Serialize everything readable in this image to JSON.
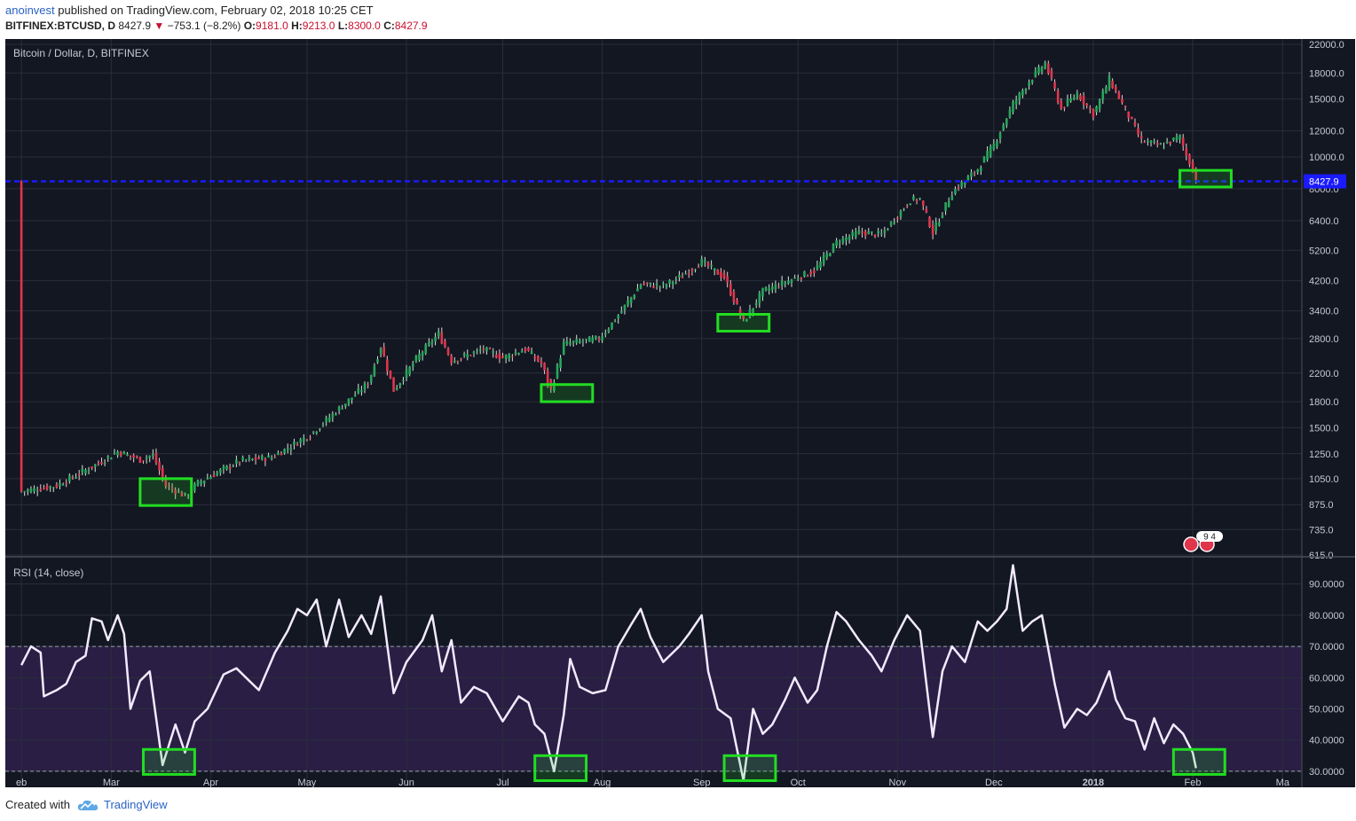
{
  "header": {
    "author": "anoinvest",
    "published_text": "published on TradingView.com, February 02, 2018 10:25 CET",
    "symbol": "BITFINEX:BTCUSD, D",
    "last": "8427.9",
    "change": "−753.1 (−8.2%)",
    "o_label": "O:",
    "o_value": "9181.0",
    "h_label": "H:",
    "h_value": "9213.0",
    "l_label": "L:",
    "l_value": "8300.0",
    "c_label": "C:",
    "c_value": "8427.9"
  },
  "footer": {
    "created_with": "Created with",
    "brand": "TradingView"
  },
  "colors": {
    "background": "#131722",
    "grid": "#2a2e39",
    "up": "#26a65b",
    "down": "#e0364c",
    "highlight": "#22dd22",
    "price_line": "#1a1aff",
    "rsi_line": "#f2eaff",
    "rsi_band": "#2a1e45",
    "text": "#c5c9d3"
  },
  "chart_data": [
    {
      "type": "candlestick",
      "title": "Bitcoin / Dollar, D, BITFINEX",
      "y_scale": "log",
      "ylim": [
        615,
        22000
      ],
      "y_ticks": [
        "615.0",
        "735.0",
        "875.0",
        "1050.0",
        "1250.0",
        "1500.0",
        "1800.0",
        "2200.0",
        "2800.0",
        "3400.0",
        "4200.0",
        "5200.0",
        "6400.0",
        "8000.0",
        "10000.0",
        "12000.0",
        "15000.0",
        "18000.0",
        "22000.0"
      ],
      "x_ticks": [
        "eb",
        "Mar",
        "Apr",
        "May",
        "Jun",
        "Jul",
        "Aug",
        "Sep",
        "Oct",
        "Nov",
        "Dec",
        "2018",
        "Feb",
        "Ma"
      ],
      "last_price_label": "8427.9",
      "last_price": 8427.9,
      "event_badge": "9 4",
      "price_path": [
        [
          "2017-02-01",
          960
        ],
        [
          "2017-02-12",
          1000
        ],
        [
          "2017-02-25",
          1170
        ],
        [
          "2017-03-03",
          1270
        ],
        [
          "2017-03-10",
          1200
        ],
        [
          "2017-03-14",
          1240
        ],
        [
          "2017-03-18",
          1000
        ],
        [
          "2017-03-24",
          930
        ],
        [
          "2017-03-28",
          1020
        ],
        [
          "2017-04-10",
          1190
        ],
        [
          "2017-04-20",
          1220
        ],
        [
          "2017-05-02",
          1430
        ],
        [
          "2017-05-12",
          1750
        ],
        [
          "2017-05-20",
          2050
        ],
        [
          "2017-05-24",
          2650
        ],
        [
          "2017-05-28",
          1950
        ],
        [
          "2017-06-05",
          2500
        ],
        [
          "2017-06-11",
          2900
        ],
        [
          "2017-06-15",
          2400
        ],
        [
          "2017-06-25",
          2600
        ],
        [
          "2017-07-01",
          2450
        ],
        [
          "2017-07-08",
          2600
        ],
        [
          "2017-07-13",
          2350
        ],
        [
          "2017-07-16",
          1950
        ],
        [
          "2017-07-20",
          2700
        ],
        [
          "2017-07-31",
          2800
        ],
        [
          "2017-08-05",
          3200
        ],
        [
          "2017-08-13",
          4100
        ],
        [
          "2017-08-20",
          4050
        ],
        [
          "2017-08-26",
          4350
        ],
        [
          "2017-09-01",
          4800
        ],
        [
          "2017-09-08",
          4300
        ],
        [
          "2017-09-14",
          3150
        ],
        [
          "2017-09-20",
          3900
        ],
        [
          "2017-09-28",
          4200
        ],
        [
          "2017-10-06",
          4500
        ],
        [
          "2017-10-13",
          5500
        ],
        [
          "2017-10-20",
          5900
        ],
        [
          "2017-10-27",
          5800
        ],
        [
          "2017-11-05",
          7400
        ],
        [
          "2017-11-08",
          7450
        ],
        [
          "2017-11-12",
          5900
        ],
        [
          "2017-11-18",
          7800
        ],
        [
          "2017-11-26",
          9200
        ],
        [
          "2017-12-01",
          10900
        ],
        [
          "2017-12-07",
          14500
        ],
        [
          "2017-12-12",
          17000
        ],
        [
          "2017-12-17",
          19300
        ],
        [
          "2017-12-22",
          14000
        ],
        [
          "2017-12-27",
          15600
        ],
        [
          "2018-01-01",
          13500
        ],
        [
          "2018-01-06",
          17200
        ],
        [
          "2018-01-10",
          14500
        ],
        [
          "2018-01-16",
          11200
        ],
        [
          "2018-01-22",
          10800
        ],
        [
          "2018-01-28",
          11500
        ],
        [
          "2018-01-30",
          10100
        ],
        [
          "2018-02-01",
          9180
        ],
        [
          "2018-02-02",
          8428
        ]
      ],
      "highlight_boxes": [
        {
          "start": "2017-03-10",
          "end": "2017-03-26",
          "low": 870,
          "high": 1050
        },
        {
          "start": "2017-07-13",
          "end": "2017-07-29",
          "low": 1800,
          "high": 2030
        },
        {
          "start": "2017-09-06",
          "end": "2017-09-22",
          "low": 2950,
          "high": 3320
        },
        {
          "start": "2018-01-28",
          "end": "2018-02-13",
          "low": 8100,
          "high": 9100
        }
      ]
    },
    {
      "type": "line",
      "title": "RSI (14, close)",
      "ylim": [
        26,
        97
      ],
      "y_ticks": [
        "30.0000",
        "40.0000",
        "50.0000",
        "60.0000",
        "70.0000",
        "80.0000",
        "90.0000"
      ],
      "band": [
        30,
        70
      ],
      "x_ticks": [
        "eb",
        "Mar",
        "Apr",
        "May",
        "Jun",
        "Jul",
        "Aug",
        "Sep",
        "Oct",
        "Nov",
        "Dec",
        "2018",
        "Feb",
        "Ma"
      ],
      "series": [
        {
          "values": [
            [
              "2017-02-01",
              64
            ],
            [
              "2017-02-04",
              70
            ],
            [
              "2017-02-07",
              68
            ],
            [
              "2017-02-08",
              54
            ],
            [
              "2017-02-12",
              56
            ],
            [
              "2017-02-15",
              58
            ],
            [
              "2017-02-18",
              65
            ],
            [
              "2017-02-21",
              67
            ],
            [
              "2017-02-23",
              79
            ],
            [
              "2017-02-26",
              78
            ],
            [
              "2017-02-28",
              72
            ],
            [
              "2017-03-03",
              80
            ],
            [
              "2017-03-05",
              74
            ],
            [
              "2017-03-07",
              50
            ],
            [
              "2017-03-10",
              59
            ],
            [
              "2017-03-13",
              62
            ],
            [
              "2017-03-17",
              32
            ],
            [
              "2017-03-21",
              45
            ],
            [
              "2017-03-24",
              36
            ],
            [
              "2017-03-27",
              46
            ],
            [
              "2017-03-31",
              50
            ],
            [
              "2017-04-05",
              61
            ],
            [
              "2017-04-09",
              63
            ],
            [
              "2017-04-12",
              60
            ],
            [
              "2017-04-16",
              56
            ],
            [
              "2017-04-21",
              68
            ],
            [
              "2017-04-25",
              75
            ],
            [
              "2017-04-28",
              82
            ],
            [
              "2017-05-01",
              80
            ],
            [
              "2017-05-04",
              85
            ],
            [
              "2017-05-07",
              70
            ],
            [
              "2017-05-11",
              85
            ],
            [
              "2017-05-14",
              73
            ],
            [
              "2017-05-18",
              80
            ],
            [
              "2017-05-21",
              74
            ],
            [
              "2017-05-24",
              86
            ],
            [
              "2017-05-28",
              55
            ],
            [
              "2017-06-01",
              65
            ],
            [
              "2017-06-06",
              72
            ],
            [
              "2017-06-09",
              80
            ],
            [
              "2017-06-12",
              62
            ],
            [
              "2017-06-15",
              72
            ],
            [
              "2017-06-18",
              52
            ],
            [
              "2017-06-22",
              57
            ],
            [
              "2017-06-26",
              55
            ],
            [
              "2017-07-01",
              46
            ],
            [
              "2017-07-06",
              54
            ],
            [
              "2017-07-09",
              52
            ],
            [
              "2017-07-11",
              45
            ],
            [
              "2017-07-14",
              42
            ],
            [
              "2017-07-17",
              30
            ],
            [
              "2017-07-20",
              48
            ],
            [
              "2017-07-22",
              66
            ],
            [
              "2017-07-25",
              57
            ],
            [
              "2017-07-29",
              55
            ],
            [
              "2017-08-02",
              56
            ],
            [
              "2017-08-06",
              70
            ],
            [
              "2017-08-10",
              77
            ],
            [
              "2017-08-13",
              82
            ],
            [
              "2017-08-16",
              73
            ],
            [
              "2017-08-20",
              65
            ],
            [
              "2017-08-25",
              70
            ],
            [
              "2017-08-28",
              74
            ],
            [
              "2017-09-01",
              80
            ],
            [
              "2017-09-03",
              62
            ],
            [
              "2017-09-06",
              50
            ],
            [
              "2017-09-10",
              47
            ],
            [
              "2017-09-14",
              27
            ],
            [
              "2017-09-17",
              50
            ],
            [
              "2017-09-20",
              42
            ],
            [
              "2017-09-23",
              45
            ],
            [
              "2017-09-27",
              53
            ],
            [
              "2017-09-30",
              60
            ],
            [
              "2017-10-04",
              52
            ],
            [
              "2017-10-07",
              56
            ],
            [
              "2017-10-10",
              70
            ],
            [
              "2017-10-13",
              81
            ],
            [
              "2017-10-16",
              78
            ],
            [
              "2017-10-20",
              72
            ],
            [
              "2017-10-24",
              67
            ],
            [
              "2017-10-27",
              62
            ],
            [
              "2017-10-31",
              72
            ],
            [
              "2017-11-04",
              80
            ],
            [
              "2017-11-08",
              75
            ],
            [
              "2017-11-12",
              41
            ],
            [
              "2017-11-15",
              62
            ],
            [
              "2017-11-18",
              70
            ],
            [
              "2017-11-22",
              65
            ],
            [
              "2017-11-26",
              78
            ],
            [
              "2017-11-29",
              75
            ],
            [
              "2017-12-02",
              78
            ],
            [
              "2017-12-05",
              82
            ],
            [
              "2017-12-07",
              96
            ],
            [
              "2017-12-10",
              75
            ],
            [
              "2017-12-13",
              78
            ],
            [
              "2017-12-16",
              80
            ],
            [
              "2017-12-20",
              58
            ],
            [
              "2017-12-23",
              44
            ],
            [
              "2017-12-27",
              50
            ],
            [
              "2017-12-30",
              48
            ],
            [
              "2018-01-02",
              52
            ],
            [
              "2018-01-06",
              62
            ],
            [
              "2018-01-08",
              53
            ],
            [
              "2018-01-11",
              47
            ],
            [
              "2018-01-14",
              46
            ],
            [
              "2018-01-17",
              37
            ],
            [
              "2018-01-20",
              47
            ],
            [
              "2018-01-23",
              39
            ],
            [
              "2018-01-26",
              45
            ],
            [
              "2018-01-29",
              42
            ],
            [
              "2018-02-01",
              36
            ],
            [
              "2018-02-02",
              31
            ]
          ]
        }
      ],
      "highlight_boxes": [
        {
          "start": "2017-03-11",
          "end": "2017-03-27",
          "low": 29,
          "high": 37
        },
        {
          "start": "2017-07-11",
          "end": "2017-07-27",
          "low": 27,
          "high": 35
        },
        {
          "start": "2017-09-08",
          "end": "2017-09-24",
          "low": 27,
          "high": 35
        },
        {
          "start": "2018-01-26",
          "end": "2018-02-11",
          "low": 29,
          "high": 37
        }
      ]
    }
  ]
}
